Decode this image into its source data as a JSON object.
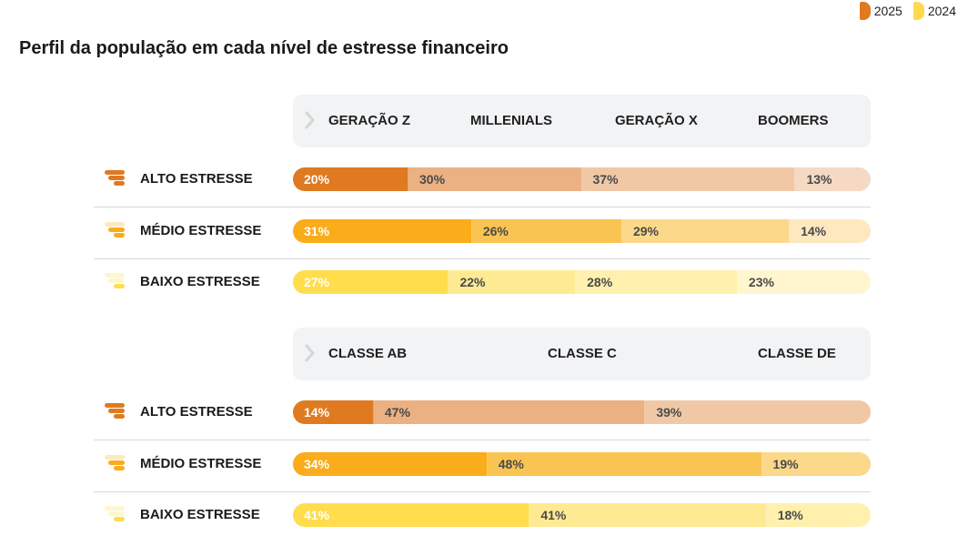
{
  "legend": [
    {
      "label": "2025",
      "color": "#e07a1f"
    },
    {
      "label": "2024",
      "color": "#ffd84d"
    }
  ],
  "title": "Perfil da população em cada nível de estresse financeiro",
  "chart_data": [
    {
      "type": "bar",
      "stacked": true,
      "orientation": "horizontal",
      "columns": [
        "GERAÇÃO Z",
        "MILLENIALS",
        "GERAÇÃO X",
        "BOOMERS"
      ],
      "rows": [
        {
          "label": "ALTO ESTRESSE",
          "level": "alto",
          "values": [
            20,
            30,
            37,
            13
          ]
        },
        {
          "label": "MÉDIO ESTRESSE",
          "level": "medio",
          "values": [
            31,
            26,
            29,
            14
          ]
        },
        {
          "label": "BAIXO ESTRESSE",
          "level": "baixo",
          "values": [
            27,
            22,
            28,
            23
          ]
        }
      ]
    },
    {
      "type": "bar",
      "stacked": true,
      "orientation": "horizontal",
      "columns": [
        "CLASSE AB",
        "CLASSE C",
        "CLASSE DE"
      ],
      "rows": [
        {
          "label": "ALTO ESTRESSE",
          "level": "alto",
          "values": [
            14,
            47,
            39
          ]
        },
        {
          "label": "MÉDIO ESTRESSE",
          "level": "medio",
          "values": [
            34,
            48,
            19
          ]
        },
        {
          "label": "BAIXO ESTRESSE",
          "level": "baixo",
          "values": [
            41,
            41,
            18
          ]
        }
      ]
    }
  ],
  "palette": {
    "alto": [
      "#df7a20",
      "#ebb182",
      "#f0c8a6",
      "#f5d9c2"
    ],
    "medio": [
      "#faac1a",
      "#fac453",
      "#fcd98a",
      "#fde8bf"
    ],
    "baixo": [
      "#ffdd4d",
      "#ffea94",
      "#fff0ad",
      "#fff6cf"
    ]
  },
  "icons": {
    "alto": "stress-high-icon",
    "medio": "stress-medium-icon",
    "baixo": "stress-low-icon",
    "header": "chevron-right-icon"
  }
}
